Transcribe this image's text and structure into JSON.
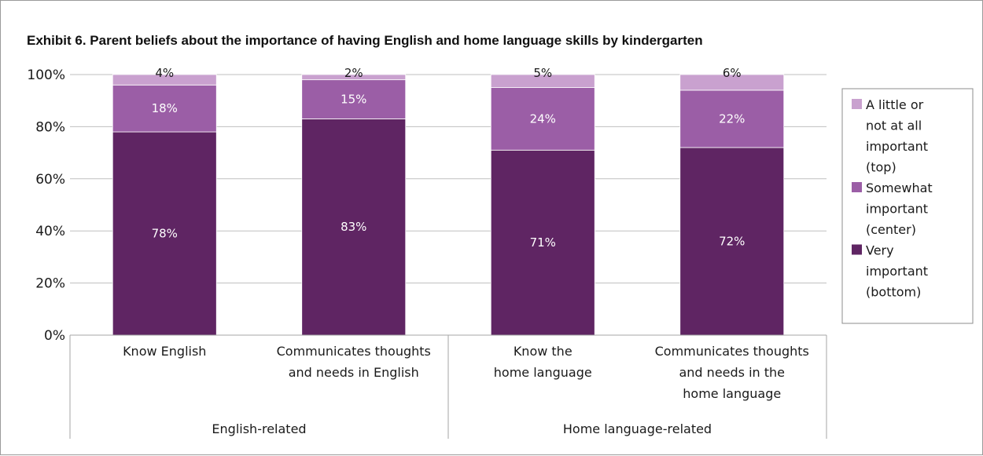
{
  "chart_data": {
    "type": "bar",
    "stacked": true,
    "title": "Exhibit 6. Parent beliefs about the importance of having English and home language skills by kindergarten",
    "categories": [
      "Know English",
      "Communicates thoughts and needs in English",
      "Know the home language",
      "Communicates thoughts and needs in the home language"
    ],
    "category_lines": [
      [
        "Know English"
      ],
      [
        "Communicates thoughts",
        "and needs in English"
      ],
      [
        "Know the",
        "home language"
      ],
      [
        "Communicates thoughts",
        "and needs in the",
        "home language"
      ]
    ],
    "groups": [
      {
        "label": "English-related",
        "categories": [
          0,
          1
        ]
      },
      {
        "label": "Home language-related",
        "categories": [
          2,
          3
        ]
      }
    ],
    "series": [
      {
        "name": "Very important (bottom)",
        "legend_lines": [
          "Very",
          "important",
          "(bottom)"
        ],
        "color": "#5f2563",
        "label_color": "#ffffff",
        "values": [
          78,
          83,
          71,
          72
        ]
      },
      {
        "name": "Somewhat important (center)",
        "legend_lines": [
          "Somewhat",
          "important",
          "(center)"
        ],
        "color": "#9b5ea6",
        "label_color": "#ffffff",
        "values": [
          18,
          15,
          24,
          22
        ]
      },
      {
        "name": "A little or not at all important (top)",
        "legend_lines": [
          "A little or",
          "not at all",
          "important",
          "(top)"
        ],
        "color": "#c9a1cf",
        "label_color": "#1a1a1a",
        "values": [
          4,
          2,
          5,
          6
        ]
      }
    ],
    "data_labels": [
      [
        "78%",
        "83%",
        "71%",
        "72%"
      ],
      [
        "18%",
        "15%",
        "24%",
        "22%"
      ],
      [
        "4%",
        "2%",
        "5%",
        "6%"
      ]
    ],
    "yticks": [
      0,
      20,
      40,
      60,
      80,
      100
    ],
    "ytick_labels": [
      "0%",
      "20%",
      "40%",
      "60%",
      "80%",
      "100%"
    ],
    "ylim": [
      0,
      100
    ],
    "xlabel": "",
    "ylabel": "",
    "grid": true,
    "grid_color": "#bfbfbf",
    "legend_position": "right"
  }
}
